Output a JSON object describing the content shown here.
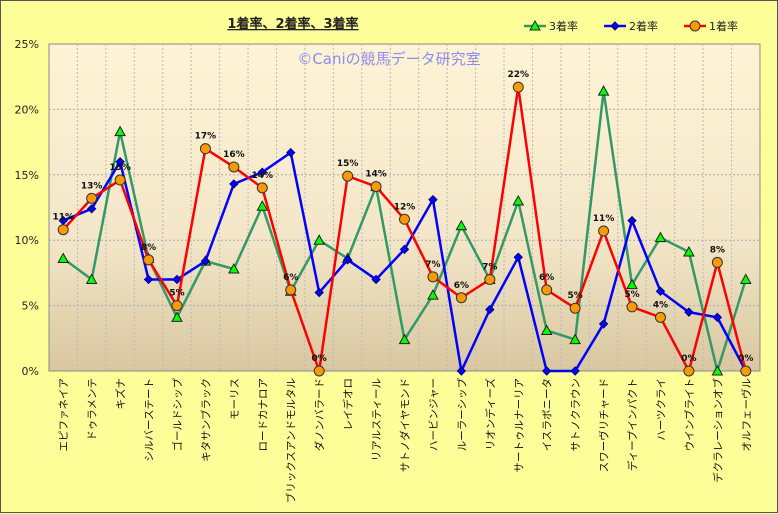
{
  "chart_data": {
    "type": "line",
    "title": "1着率、2着率、3着率",
    "watermark": "©Caniの競馬データ研究室",
    "xlabel": "",
    "ylabel": "",
    "ylim": [
      0,
      25
    ],
    "yticks": [
      "0%",
      "5%",
      "10%",
      "15%",
      "20%",
      "25%"
    ],
    "ytick_values": [
      0,
      5,
      10,
      15,
      20,
      25
    ],
    "grid": true,
    "legend_position": "top-right",
    "categories": [
      "エピファネイア",
      "ドゥラメンテ",
      "キズナ",
      "シルバーステート",
      "ゴールドシップ",
      "キタサンブラック",
      "モーリス",
      "ロードカナロア",
      "ブリックスアンドモルタル",
      "ダノンバラード",
      "レイデオロ",
      "リアルスティール",
      "サトノダイヤモンド",
      "ハービンジャー",
      "ルーラーシップ",
      "リオンディーズ",
      "サートゥルナーリア",
      "イスラボニータ",
      "サトノクラウン",
      "スワーヴリチャード",
      "ディープインパクト",
      "ハーツクライ",
      "ウインブライト",
      "デクラレーションオブ",
      "オルフェーヴル"
    ],
    "series": [
      {
        "name": "3着率",
        "color": "#339966",
        "marker": "triangle",
        "marker_color": "#00FF00",
        "values": [
          8.6,
          7.0,
          18.3,
          8.6,
          4.1,
          8.4,
          7.8,
          12.6,
          6.1,
          10.0,
          8.6,
          14.1,
          2.4,
          5.8,
          11.1,
          7.0,
          13.0,
          3.1,
          2.4,
          21.4,
          6.6,
          10.2,
          9.1,
          0,
          7.0
        ]
      },
      {
        "name": "2着率",
        "color": "#0000FF",
        "marker": "diamond",
        "marker_color": "#0000FF",
        "values": [
          11.5,
          12.4,
          16.0,
          7.0,
          7.0,
          8.4,
          14.3,
          15.2,
          16.7,
          6.0,
          8.5,
          7.0,
          9.3,
          13.1,
          0,
          4.7,
          8.7,
          0,
          0,
          3.6,
          11.5,
          6.1,
          4.5,
          4.1,
          0
        ]
      },
      {
        "name": "1着率",
        "color": "#FF0000",
        "marker": "circle",
        "marker_color": "#FF9900",
        "values": [
          10.8,
          13.2,
          14.6,
          8.5,
          5.0,
          17.0,
          15.6,
          14.0,
          6.2,
          0,
          14.9,
          14.1,
          11.6,
          7.2,
          5.6,
          7.0,
          21.7,
          6.2,
          4.8,
          10.7,
          4.9,
          4.1,
          0,
          8.3,
          0
        ],
        "data_labels": [
          "11%",
          "13%",
          "15%",
          "8%",
          "5%",
          "17%",
          "16%",
          "14%",
          "6%",
          "0%",
          "15%",
          "14%",
          "12%",
          "7%",
          "6%",
          "7%",
          "22%",
          "6%",
          "5%",
          "11%",
          "5%",
          "4%",
          "0%",
          "8%",
          "0%"
        ]
      }
    ]
  }
}
